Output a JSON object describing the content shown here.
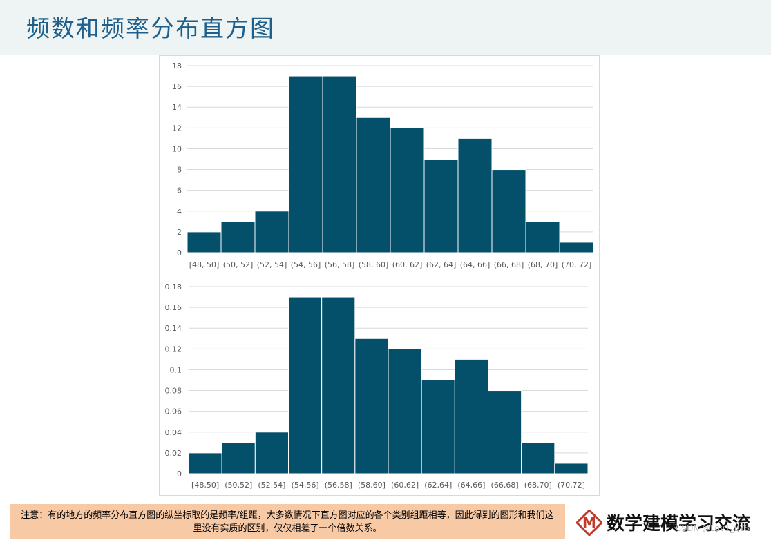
{
  "header": {
    "title": "频数和频率分布直方图"
  },
  "chart_data": [
    {
      "type": "bar",
      "categories": [
        "[48, 50]",
        "(50, 52]",
        "(52, 54]",
        "(54, 56]",
        "(56, 58]",
        "(58, 60]",
        "(60, 62]",
        "(62, 64]",
        "(64, 66]",
        "(66, 68]",
        "(68, 70]",
        "(70, 72]"
      ],
      "values": [
        2,
        3,
        4,
        17,
        17,
        13,
        12,
        9,
        11,
        8,
        3,
        1
      ],
      "yticks": [
        "0",
        "2",
        "4",
        "6",
        "8",
        "10",
        "12",
        "14",
        "16",
        "18"
      ],
      "ylim": [
        0,
        18
      ],
      "grid": true,
      "color": "#044f6a"
    },
    {
      "type": "bar",
      "categories": [
        "[48,50]",
        "(50,52]",
        "(52,54]",
        "(54,56]",
        "(56,58]",
        "(58,60]",
        "(60,62]",
        "(62,64]",
        "(64,66]",
        "(66,68]",
        "(68,70]",
        "(70,72]"
      ],
      "values": [
        0.02,
        0.03,
        0.04,
        0.17,
        0.17,
        0.13,
        0.12,
        0.09,
        0.11,
        0.08,
        0.03,
        0.01
      ],
      "yticks": [
        "0",
        "0.02",
        "0.04",
        "0.06",
        "0.08",
        "0.1",
        "0.12",
        "0.14",
        "0.16",
        "0.18"
      ],
      "ylim": [
        0,
        0.18
      ],
      "grid": true,
      "color": "#044f6a"
    }
  ],
  "note": {
    "text": "注意：有的地方的频率分布直方图的纵坐标取的是频率/组距，大多数情况下直方图对应的各个类别组距相等，因此得到的图形和我们这里没有实质的区别，仅仅相差了一个倍数关系。"
  },
  "brand": {
    "logo_letter": "M",
    "text": "数学建模学习交流"
  },
  "watermark": {
    "text": "CSDN @Lov1_BYS"
  }
}
